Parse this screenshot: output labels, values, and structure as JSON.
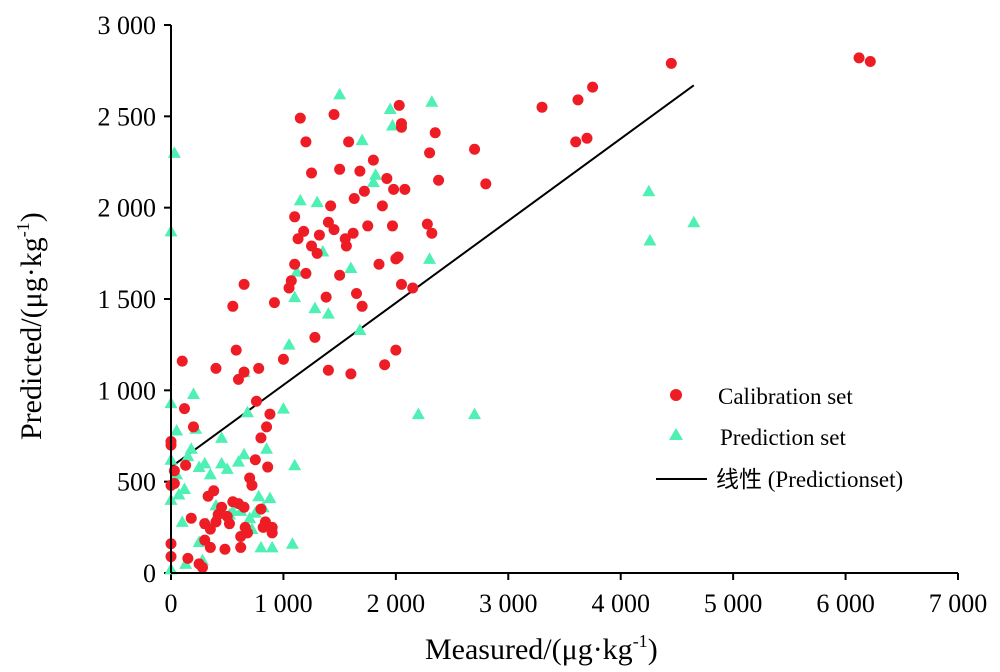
{
  "chart_data": {
    "type": "scatter",
    "xlabel_main": "Measured/(μg·kg",
    "xlabel_sup": "-1",
    "xlabel_end": ")",
    "ylabel_main": "Predicted/(μg·kg",
    "ylabel_sup": "-1",
    "ylabel_end": ")",
    "xlim": [
      0,
      7000
    ],
    "ylim": [
      0,
      3000
    ],
    "xticks": [
      0,
      1000,
      2000,
      3000,
      4000,
      5000,
      6000,
      7000
    ],
    "xtick_labels": [
      "0",
      "1 000",
      "2 000",
      "3 000",
      "4 000",
      "5 000",
      "6 000",
      "7 000"
    ],
    "yticks": [
      0,
      500,
      1000,
      1500,
      2000,
      2500,
      3000
    ],
    "ytick_labels": [
      "0",
      "500",
      "1 000",
      "1 500",
      "2 000",
      "2 500",
      "3 000"
    ],
    "legend_position": "bottom-right",
    "colors": {
      "calibration": "#ee1c25",
      "prediction": "#4ff0b4",
      "trend": "#000000"
    },
    "series": [
      {
        "name": "Calibration set",
        "marker": "circle",
        "points": [
          [
            0,
            160
          ],
          [
            0,
            90
          ],
          [
            0,
            480
          ],
          [
            0,
            700
          ],
          [
            0,
            720
          ],
          [
            30,
            490
          ],
          [
            30,
            560
          ],
          [
            100,
            1160
          ],
          [
            120,
            900
          ],
          [
            130,
            590
          ],
          [
            150,
            80
          ],
          [
            180,
            300
          ],
          [
            200,
            800
          ],
          [
            250,
            50
          ],
          [
            280,
            30
          ],
          [
            300,
            180
          ],
          [
            300,
            270
          ],
          [
            330,
            420
          ],
          [
            350,
            240
          ],
          [
            350,
            140
          ],
          [
            380,
            450
          ],
          [
            400,
            280
          ],
          [
            400,
            1120
          ],
          [
            420,
            320
          ],
          [
            450,
            360
          ],
          [
            480,
            130
          ],
          [
            500,
            310
          ],
          [
            520,
            270
          ],
          [
            550,
            1460
          ],
          [
            550,
            390
          ],
          [
            580,
            1220
          ],
          [
            600,
            1060
          ],
          [
            600,
            380
          ],
          [
            620,
            200
          ],
          [
            620,
            140
          ],
          [
            650,
            1580
          ],
          [
            650,
            1100
          ],
          [
            650,
            360
          ],
          [
            660,
            250
          ],
          [
            680,
            220
          ],
          [
            700,
            520
          ],
          [
            720,
            480
          ],
          [
            750,
            620
          ],
          [
            760,
            940
          ],
          [
            780,
            1120
          ],
          [
            800,
            740
          ],
          [
            800,
            350
          ],
          [
            820,
            250
          ],
          [
            840,
            280
          ],
          [
            850,
            800
          ],
          [
            860,
            580
          ],
          [
            880,
            870
          ],
          [
            900,
            220
          ],
          [
            900,
            250
          ],
          [
            920,
            1480
          ],
          [
            1000,
            1170
          ],
          [
            1050,
            1560
          ],
          [
            1070,
            1600
          ],
          [
            1100,
            1950
          ],
          [
            1100,
            1690
          ],
          [
            1130,
            1830
          ],
          [
            1150,
            2490
          ],
          [
            1180,
            1870
          ],
          [
            1200,
            2360
          ],
          [
            1200,
            1640
          ],
          [
            1250,
            1790
          ],
          [
            1250,
            2190
          ],
          [
            1280,
            1290
          ],
          [
            1300,
            1750
          ],
          [
            1320,
            1850
          ],
          [
            1380,
            1510
          ],
          [
            1400,
            1110
          ],
          [
            1400,
            1920
          ],
          [
            1420,
            2010
          ],
          [
            1450,
            1880
          ],
          [
            1450,
            2510
          ],
          [
            1500,
            1630
          ],
          [
            1500,
            2210
          ],
          [
            1550,
            1830
          ],
          [
            1560,
            1790
          ],
          [
            1580,
            2360
          ],
          [
            1600,
            1090
          ],
          [
            1620,
            1860
          ],
          [
            1630,
            2050
          ],
          [
            1650,
            1530
          ],
          [
            1680,
            2200
          ],
          [
            1700,
            1460
          ],
          [
            1720,
            2090
          ],
          [
            1750,
            1900
          ],
          [
            1800,
            2260
          ],
          [
            1850,
            1690
          ],
          [
            1880,
            2010
          ],
          [
            1900,
            1140
          ],
          [
            1920,
            2160
          ],
          [
            1970,
            1900
          ],
          [
            1980,
            2100
          ],
          [
            2000,
            1220
          ],
          [
            2000,
            1720
          ],
          [
            2020,
            1730
          ],
          [
            2030,
            2560
          ],
          [
            2050,
            2460
          ],
          [
            2050,
            2440
          ],
          [
            2050,
            1580
          ],
          [
            2080,
            2100
          ],
          [
            2150,
            1560
          ],
          [
            2280,
            1910
          ],
          [
            2300,
            2300
          ],
          [
            2320,
            1860
          ],
          [
            2350,
            2410
          ],
          [
            2380,
            2150
          ],
          [
            2700,
            2320
          ],
          [
            2800,
            2130
          ],
          [
            3300,
            2550
          ],
          [
            3600,
            2360
          ],
          [
            3620,
            2590
          ],
          [
            3700,
            2380
          ],
          [
            3750,
            2660
          ],
          [
            4450,
            2790
          ],
          [
            6120,
            2820
          ],
          [
            6220,
            2800
          ]
        ]
      },
      {
        "name": "Prediction set",
        "marker": "triangle",
        "points": [
          [
            0,
            1870
          ],
          [
            0,
            930
          ],
          [
            0,
            620
          ],
          [
            0,
            400
          ],
          [
            0,
            20
          ],
          [
            30,
            2300
          ],
          [
            50,
            780
          ],
          [
            50,
            540
          ],
          [
            70,
            430
          ],
          [
            100,
            280
          ],
          [
            120,
            460
          ],
          [
            130,
            50
          ],
          [
            150,
            640
          ],
          [
            180,
            680
          ],
          [
            200,
            980
          ],
          [
            220,
            790
          ],
          [
            250,
            580
          ],
          [
            250,
            170
          ],
          [
            280,
            70
          ],
          [
            300,
            600
          ],
          [
            320,
            270
          ],
          [
            350,
            540
          ],
          [
            400,
            370
          ],
          [
            420,
            330
          ],
          [
            450,
            740
          ],
          [
            450,
            600
          ],
          [
            500,
            570
          ],
          [
            520,
            320
          ],
          [
            550,
            340
          ],
          [
            600,
            610
          ],
          [
            620,
            340
          ],
          [
            650,
            650
          ],
          [
            650,
            1100
          ],
          [
            680,
            880
          ],
          [
            700,
            300
          ],
          [
            720,
            240
          ],
          [
            750,
            330
          ],
          [
            780,
            420
          ],
          [
            800,
            140
          ],
          [
            820,
            360
          ],
          [
            850,
            680
          ],
          [
            880,
            410
          ],
          [
            900,
            140
          ],
          [
            1000,
            900
          ],
          [
            1050,
            1250
          ],
          [
            1080,
            160
          ],
          [
            1100,
            590
          ],
          [
            1100,
            1510
          ],
          [
            1120,
            1650
          ],
          [
            1150,
            2040
          ],
          [
            1280,
            1450
          ],
          [
            1300,
            2030
          ],
          [
            1350,
            1760
          ],
          [
            1400,
            1420
          ],
          [
            1500,
            2620
          ],
          [
            1600,
            1670
          ],
          [
            1680,
            1330
          ],
          [
            1700,
            2370
          ],
          [
            1800,
            2140
          ],
          [
            1820,
            2180
          ],
          [
            1950,
            2540
          ],
          [
            1970,
            2450
          ],
          [
            2200,
            870
          ],
          [
            2300,
            1720
          ],
          [
            2320,
            2580
          ],
          [
            2700,
            870
          ],
          [
            4250,
            2090
          ],
          [
            4260,
            1820
          ],
          [
            4650,
            1920
          ]
        ]
      },
      {
        "name": "线性 (Predictionset)",
        "type": "line",
        "points": [
          [
            0,
            580
          ],
          [
            4650,
            2670
          ]
        ]
      }
    ]
  }
}
